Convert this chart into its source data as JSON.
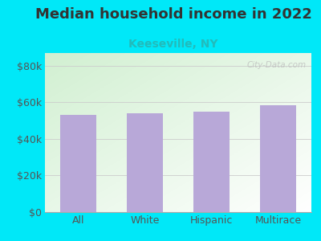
{
  "title": "Median household income in 2022",
  "subtitle": "Keeseville, NY",
  "categories": [
    "All",
    "White",
    "Hispanic",
    "Multirace"
  ],
  "values": [
    53000,
    54000,
    55000,
    58500
  ],
  "bar_color": "#b8a8d8",
  "title_fontsize": 13,
  "subtitle_fontsize": 10,
  "subtitle_color": "#22bbbb",
  "title_color": "#333333",
  "background_color": "#00e8f8",
  "yticks": [
    0,
    20000,
    40000,
    60000,
    80000
  ],
  "ytick_labels": [
    "$0",
    "$20k",
    "$40k",
    "$60k",
    "$80k"
  ],
  "ylim": [
    0,
    87000
  ],
  "watermark": "City-Data.com",
  "tick_color": "#555555",
  "grid_color": "#cccccc",
  "bar_width": 0.55
}
